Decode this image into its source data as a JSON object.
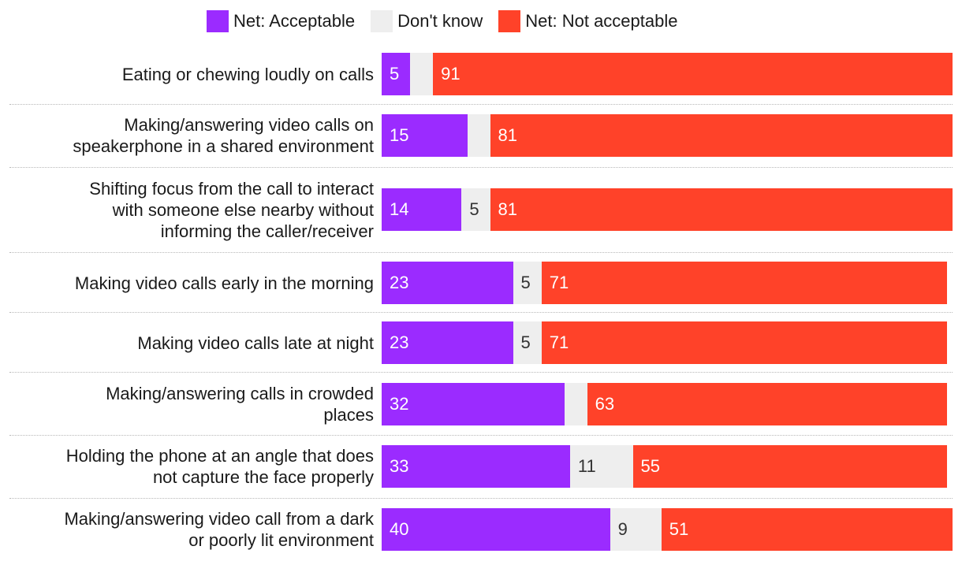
{
  "colors": {
    "acceptable": "#9b2bff",
    "dont_know": "#eeeeee",
    "not_acceptable": "#ff4229",
    "label_on_color": "#ffffff",
    "label_on_light": "#333333"
  },
  "legend": [
    {
      "key": "acceptable",
      "label": "Net: Acceptable"
    },
    {
      "key": "dont_know",
      "label": "Don't know"
    },
    {
      "key": "not_acceptable",
      "label": "Net: Not acceptable"
    }
  ],
  "chart_data": {
    "type": "bar",
    "orientation": "horizontal",
    "stacked": true,
    "title": "",
    "xlabel": "",
    "ylabel": "",
    "xlim": [
      0,
      100
    ],
    "categories": [
      "Eating or chewing loudly on calls",
      "Making/answering video calls on speakerphone in a shared environment",
      "Shifting focus from the call to interact with someone else nearby without informing the caller/receiver",
      "Making video calls early in the morning",
      "Making video calls late at night",
      "Making/answering calls in crowded places",
      "Holding the phone at an angle that does not capture the face properly",
      "Making/answering video call from a dark or poorly lit environment"
    ],
    "category_lines": [
      [
        "Eating or chewing loudly on calls"
      ],
      [
        "Making/answering video calls on",
        "speakerphone in a shared environment"
      ],
      [
        "Shifting focus from the call to interact",
        "with someone else nearby without",
        "informing the caller/receiver"
      ],
      [
        "Making video calls early in the morning"
      ],
      [
        "Making video calls late at night"
      ],
      [
        "Making/answering calls in crowded",
        "places"
      ],
      [
        "Holding the phone at an angle that does",
        "not capture the face properly"
      ],
      [
        "Making/answering video call from a dark",
        "or poorly lit environment"
      ]
    ],
    "series": [
      {
        "name": "Net: Acceptable",
        "key": "acceptable",
        "values": [
          5,
          15,
          14,
          23,
          23,
          32,
          33,
          40
        ],
        "labels": [
          "5",
          "15",
          "14",
          "23",
          "23",
          "32",
          "33",
          "40"
        ]
      },
      {
        "name": "Don't know",
        "key": "dont_know",
        "values": [
          4,
          4,
          5,
          5,
          5,
          4,
          11,
          9
        ],
        "labels": [
          "",
          "",
          "5",
          "5",
          "5",
          "",
          "11",
          "9"
        ]
      },
      {
        "name": "Net: Not acceptable",
        "key": "not_acceptable",
        "values": [
          91,
          81,
          81,
          71,
          71,
          63,
          55,
          51
        ],
        "labels": [
          "91",
          "81",
          "81",
          "71",
          "71",
          "63",
          "55",
          "51"
        ]
      }
    ]
  }
}
